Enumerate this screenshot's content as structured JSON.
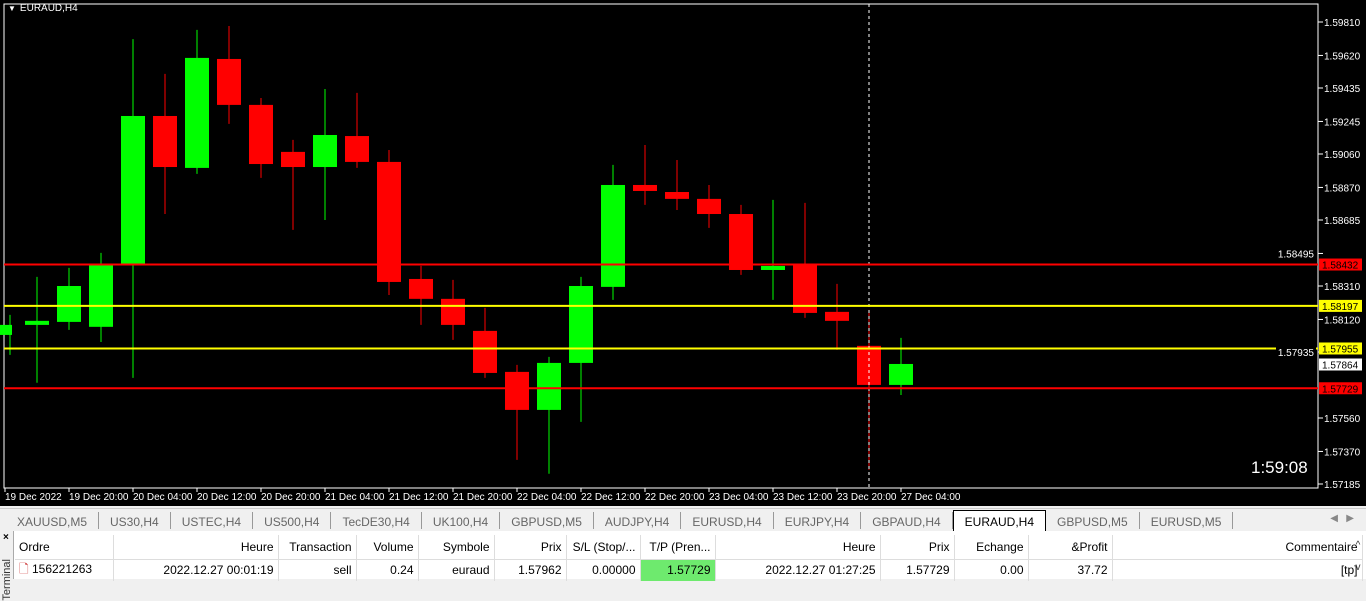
{
  "chart": {
    "title": "EURAUD,H4",
    "timer": "1:59:08",
    "bull_color": "#00ff00",
    "bear_color": "#ff0000",
    "price_axis": [
      "1.59810",
      "1.59620",
      "1.59435",
      "1.59245",
      "1.59060",
      "1.58870",
      "1.58685",
      "1.58495",
      "1.58310",
      "1.58120",
      "1.57935",
      "1.57560",
      "1.57370",
      "1.57185"
    ],
    "time_axis": [
      "19 Dec 2022",
      "19 Dec 20:00",
      "20 Dec 04:00",
      "20 Dec 12:00",
      "20 Dec 20:00",
      "21 Dec 04:00",
      "21 Dec 12:00",
      "21 Dec 20:00",
      "22 Dec 04:00",
      "22 Dec 12:00",
      "22 Dec 20:00",
      "23 Dec 04:00",
      "23 Dec 12:00",
      "23 Dec 20:00",
      "27 Dec 04:00"
    ],
    "levels": [
      {
        "price": "1.58432",
        "color": "#ff0000"
      },
      {
        "price": "1.58197",
        "color": "#ffff00"
      },
      {
        "price": "1.57955",
        "color": "#ffff00"
      },
      {
        "price": "1.57729",
        "color": "#ff0000"
      }
    ],
    "current_price": "1.57864",
    "candles": [
      [
        1.58032,
        1.58146,
        1.57919,
        1.58089
      ],
      [
        1.58089,
        1.58362,
        1.5776,
        1.58112
      ],
      [
        1.58106,
        1.58413,
        1.58061,
        1.5831
      ],
      [
        1.58078,
        1.58498,
        1.57992,
        1.58436
      ],
      [
        1.58436,
        1.59713,
        1.57788,
        1.59276
      ],
      [
        1.59276,
        1.59515,
        1.58719,
        1.58986
      ],
      [
        1.58981,
        1.59765,
        1.58947,
        1.59606
      ],
      [
        1.596,
        1.59787,
        1.59231,
        1.59339
      ],
      [
        1.59339,
        1.59378,
        1.58924,
        1.59003
      ],
      [
        1.59072,
        1.5914,
        1.58629,
        1.58986
      ],
      [
        1.58986,
        1.59429,
        1.58685,
        1.59168
      ],
      [
        1.59162,
        1.59407,
        1.58981,
        1.59015
      ],
      [
        1.59015,
        1.59083,
        1.58259,
        1.58333
      ],
      [
        1.5835,
        1.58424,
        1.58089,
        1.58237
      ],
      [
        1.58237,
        1.58345,
        1.58004,
        1.58089
      ],
      [
        1.58055,
        1.58186,
        1.57788,
        1.57816
      ],
      [
        1.57822,
        1.57862,
        1.57322,
        1.57606
      ],
      [
        1.57606,
        1.57907,
        1.57243,
        1.57873
      ],
      [
        1.57873,
        1.58362,
        1.57538,
        1.5831
      ],
      [
        1.58305,
        1.58998,
        1.58231,
        1.58884
      ],
      [
        1.58884,
        1.59111,
        1.58771,
        1.5885
      ],
      [
        1.58844,
        1.59026,
        1.58742,
        1.58805
      ],
      [
        1.58805,
        1.58884,
        1.5864,
        1.58719
      ],
      [
        1.58719,
        1.58771,
        1.58373,
        1.58401
      ],
      [
        1.58401,
        1.58799,
        1.58231,
        1.58424
      ],
      [
        1.5843,
        1.58782,
        1.58129,
        1.58157
      ],
      [
        1.58163,
        1.58322,
        1.57947,
        1.58112
      ],
      [
        1.5797,
        1.58174,
        1.57265,
        1.57748
      ],
      [
        1.57748,
        1.58015,
        1.57691,
        1.57867
      ]
    ]
  },
  "tabs": [
    "XAUUSD,M5",
    "US30,H4",
    "USTEC,H4",
    "US500,H4",
    "TecDE30,H4",
    "UK100,H4",
    "GBPUSD,M5",
    "AUDJPY,H4",
    "EURUSD,H4",
    "EURJPY,H4",
    "GBPAUD,H4",
    "EURAUD,H4",
    "GBPUSD,M5",
    "EURUSD,M5"
  ],
  "active_tab": "EURAUD,H4",
  "terminal": {
    "side_label": "Terminal",
    "columns": [
      "Ordre",
      "Heure",
      "Transaction",
      "Volume",
      "Symbole",
      "Prix",
      "S/L (Stop/...",
      "T/P (Pren...",
      "Heure",
      "Prix",
      "Echange",
      "&Profit",
      "Commentaire"
    ],
    "rows": [
      [
        "156221263",
        "2022.12.27 00:01:19",
        "sell",
        "0.24",
        "euraud",
        "1.57962",
        "0.00000",
        "1.57729",
        "2022.12.27 01:27:25",
        "1.57729",
        "0.00",
        "37.72",
        "[tp]"
      ]
    ]
  }
}
